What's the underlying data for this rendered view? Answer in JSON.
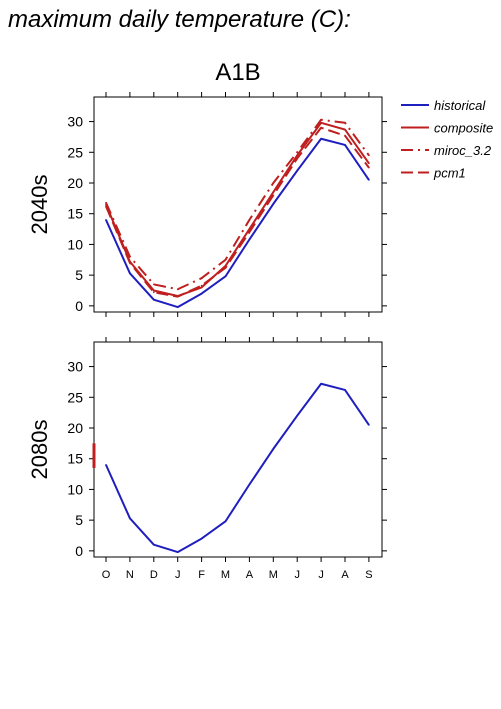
{
  "figure": {
    "title": "maximum daily temperature (C):",
    "scenario": "A1B"
  },
  "legend": {
    "placement": "right",
    "items": [
      {
        "label": "historical",
        "color": "#1f1fbf",
        "dash": "solid"
      },
      {
        "label": "composite",
        "color": "#bf1f1f",
        "dash": "solid"
      },
      {
        "label": "miroc_3.2",
        "color": "#bf1f1f",
        "dash": "dashdot"
      },
      {
        "label": "pcm1",
        "color": "#bf1f1f",
        "dash": "dashed"
      }
    ]
  },
  "chart_data": [
    {
      "type": "line",
      "panel": "2040s",
      "ylabel": "2040s",
      "categories": [
        "O",
        "N",
        "D",
        "J",
        "F",
        "M",
        "A",
        "M",
        "J",
        "J",
        "A",
        "S"
      ],
      "ylim": [
        -1,
        34
      ],
      "yticks": [
        0,
        5,
        10,
        15,
        20,
        25,
        30
      ],
      "series": [
        {
          "name": "historical",
          "color": "#1f1fbf",
          "dash": "solid",
          "values": [
            14.0,
            5.3,
            1.0,
            -0.2,
            2.0,
            4.8,
            10.8,
            16.6,
            22.0,
            27.2,
            26.2,
            20.5
          ]
        },
        {
          "name": "composite",
          "color": "#bf1f1f",
          "dash": "solid",
          "values": [
            16.5,
            7.2,
            2.5,
            1.6,
            3.0,
            6.5,
            12.5,
            18.5,
            24.5,
            29.8,
            28.7,
            23.2
          ]
        },
        {
          "name": "miroc_3.2",
          "color": "#bf1f1f",
          "dash": "dashdot",
          "values": [
            16.8,
            8.0,
            3.5,
            2.7,
            4.5,
            7.5,
            14.0,
            20.0,
            25.0,
            30.3,
            29.8,
            24.5
          ]
        },
        {
          "name": "pcm1",
          "color": "#bf1f1f",
          "dash": "dashed",
          "values": [
            16.2,
            7.0,
            2.2,
            1.5,
            3.3,
            6.2,
            12.0,
            18.0,
            24.0,
            29.0,
            27.7,
            22.5
          ]
        }
      ]
    },
    {
      "type": "line",
      "panel": "2080s",
      "ylabel": "2080s",
      "categories": [
        "O",
        "N",
        "D",
        "J",
        "F",
        "M",
        "A",
        "M",
        "J",
        "J",
        "A",
        "S"
      ],
      "ylim": [
        -1,
        34
      ],
      "yticks": [
        0,
        5,
        10,
        15,
        20,
        25,
        30
      ],
      "series": [
        {
          "name": "historical",
          "color": "#1f1fbf",
          "dash": "solid",
          "values": [
            14.0,
            5.3,
            1.0,
            -0.2,
            2.0,
            4.8,
            10.8,
            16.6,
            22.0,
            27.2,
            26.2,
            20.5
          ]
        }
      ],
      "annotations": [
        {
          "note": "short red segment at left axis edge",
          "y_range": [
            13.5,
            17.5
          ],
          "color": "#bf1f1f"
        }
      ]
    }
  ]
}
